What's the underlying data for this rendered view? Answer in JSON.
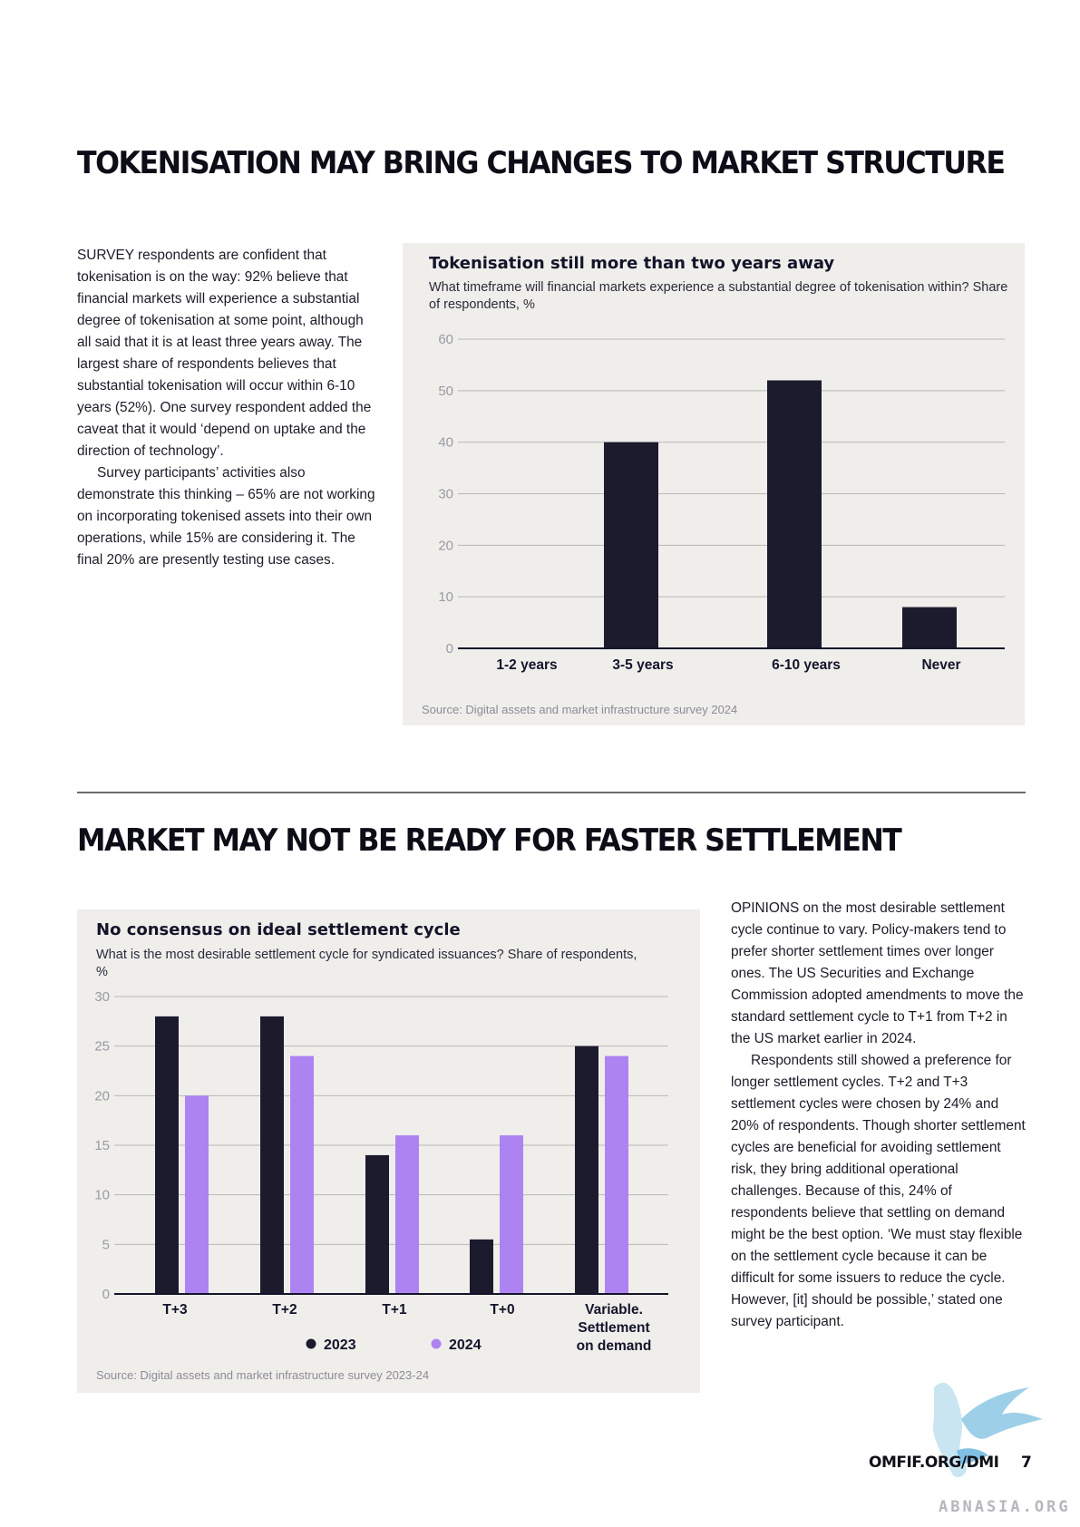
{
  "section1": {
    "heading": "TOKENISATION MAY BRING CHANGES TO MARKET STRUCTURE",
    "paragraphs": [
      "SURVEY respondents are confident that tokenisation is on the way: 92% believe that financial markets will experience a substantial degree of tokenisation at some point, although all said that it is at least three years away. The largest share of respondents believes that substantial tokenisation will occur within 6-10 years (52%). One survey respondent added the caveat that it would ‘depend on uptake and the direction of technology’.",
      "Survey participants’ activities also demonstrate this thinking – 65% are not working on incorporating tokenised assets into their own operations, while 15% are considering it. The final 20% are presently testing use cases."
    ],
    "chart": {
      "title": "Tokenisation still more than two years away",
      "subtitle": "What timeframe will financial markets experience a substantial degree of tokenisation within? Share of respondents, %",
      "source": "Source: Digital assets and market infrastructure survey 2024"
    }
  },
  "section2": {
    "heading": "MARKET MAY NOT BE READY FOR FASTER SETTLEMENT",
    "paragraphs": [
      "OPINIONS on the most desirable settlement cycle continue to vary. Policy-makers tend to prefer shorter settlement times over longer ones. The US Securities and Exchange Commission adopted amendments to move the standard settlement cycle to T+1 from T+2 in the US market earlier in 2024.",
      "Respondents still showed a preference for longer settlement cycles. T+2 and T+3 settlement cycles were chosen by 24% and 20% of respondents. Though shorter settlement cycles are beneficial for avoiding settlement risk, they bring additional operational challenges. Because of this, 24% of respondents believe that settling on demand might be the best option. ‘We must stay flexible on the settlement cycle because it can be difficult for some issuers to reduce the cycle. However, [it] should be possible,’ stated one survey participant."
    ],
    "chart": {
      "title": "No consensus on ideal settlement cycle",
      "subtitle": "What is the most desirable settlement cycle for syndicated issuances? Share of respondents, %",
      "source": "Source: Digital assets and market infrastructure survey 2023-24"
    }
  },
  "footer": {
    "site": "OMFIF.ORG/DMI",
    "page": "7",
    "watermark": "ABNASIA.ORG"
  },
  "colors": {
    "dark": "#1c1b2e",
    "purple": "#ad83f2",
    "grid": "#b8b8b8",
    "panel": "#efeeeb"
  },
  "chart_data": [
    {
      "type": "bar",
      "categories": [
        "1-2 years",
        "3-5 years",
        "6-10 years",
        "Never"
      ],
      "values": [
        0,
        40,
        52,
        8
      ],
      "ylim": [
        0,
        60
      ],
      "yticks": [
        0,
        10,
        20,
        30,
        40,
        50,
        60
      ],
      "grid": true
    },
    {
      "type": "bar",
      "categories": [
        "T+3",
        "T+2",
        "T+1",
        "T+0",
        "Variable. Settlement on demand"
      ],
      "series": [
        {
          "name": "2023",
          "values": [
            28,
            28,
            14,
            5.5,
            25
          ]
        },
        {
          "name": "2024",
          "values": [
            20,
            24,
            16,
            16,
            24
          ]
        }
      ],
      "ylim": [
        0,
        30
      ],
      "yticks": [
        0,
        5,
        10,
        15,
        20,
        25,
        30
      ],
      "grid": true,
      "legend": "bottom"
    }
  ]
}
